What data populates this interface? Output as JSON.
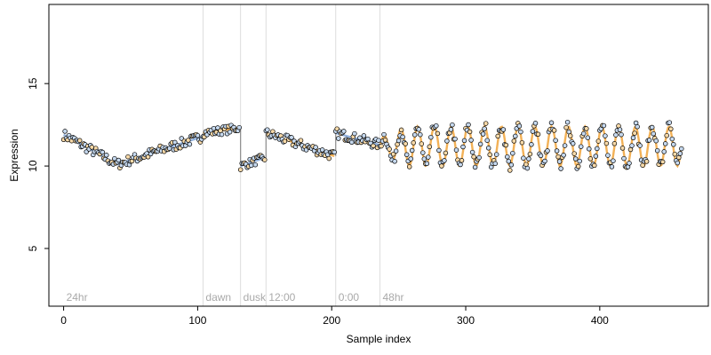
{
  "chart_data": {
    "type": "scatter",
    "title": "",
    "xlabel": "Sample index",
    "ylabel": "Expression",
    "xlim": [
      -11,
      481
    ],
    "ylim": [
      1.5,
      19.8
    ],
    "xticks": [
      0,
      100,
      200,
      300,
      400
    ],
    "yticks": [
      5,
      10,
      15
    ],
    "grid": false,
    "legend": "none",
    "colors": {
      "point_fill_light": "#c6d9ef",
      "point_fill_warm": "#f7d9a8",
      "point_stroke": "#000000",
      "line_blue": "#7fa3d6",
      "line_orange": "#f0a33a",
      "line_gray": "#8c8c8c",
      "divider": "#dddddd",
      "section_text": "#a9a9a9"
    },
    "sections": [
      {
        "label": "24hr",
        "x_start": 0,
        "x_end": 104
      },
      {
        "label": "dawn",
        "x_start": 104,
        "x_end": 132
      },
      {
        "label": "dusk",
        "x_start": 132,
        "x_end": 151
      },
      {
        "label": "12:00",
        "x_start": 151,
        "x_end": 203
      },
      {
        "label": "0:00",
        "x_start": 203,
        "x_end": 236
      },
      {
        "label": "48hr",
        "x_start": 236,
        "x_end": 462
      }
    ],
    "dividers": [
      104,
      132,
      151,
      203,
      236
    ],
    "segments": [
      {
        "from": 0,
        "to": 104,
        "shape": "drift",
        "y_start": 11.9,
        "y_dip": 10.1,
        "dip_at": 40,
        "y_end": 11.8,
        "noise": 0.3
      },
      {
        "from": 104,
        "to": 132,
        "shape": "linear",
        "y_start": 12.0,
        "y_end": 12.3,
        "noise": 0.25
      },
      {
        "from": 132,
        "to": 151,
        "shape": "linear",
        "y_start": 10.0,
        "y_end": 10.5,
        "noise": 0.25
      },
      {
        "from": 151,
        "to": 203,
        "shape": "linear",
        "y_start": 12.0,
        "y_end": 10.6,
        "noise": 0.3
      },
      {
        "from": 203,
        "to": 236,
        "shape": "linear",
        "y_start": 12.0,
        "y_end": 11.3,
        "noise": 0.3
      },
      {
        "from": 236,
        "to": 462,
        "shape": "oscillation",
        "center": 11.2,
        "amplitude": 1.2,
        "period": 12.5,
        "noise": 0.35
      }
    ]
  }
}
